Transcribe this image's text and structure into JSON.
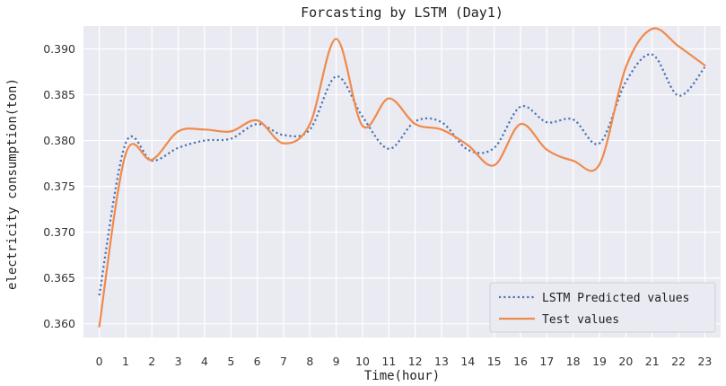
{
  "chart_data": {
    "type": "line",
    "title": "Forcasting by LSTM (Day1)",
    "xlabel": "Time(hour)",
    "ylabel": "electricity consumption(ton)",
    "x": [
      0,
      1,
      2,
      3,
      4,
      5,
      6,
      7,
      8,
      9,
      10,
      11,
      12,
      13,
      14,
      15,
      16,
      17,
      18,
      19,
      20,
      21,
      22,
      23
    ],
    "x_ticks": [
      "0",
      "1",
      "2",
      "3",
      "4",
      "5",
      "6",
      "7",
      "8",
      "9",
      "10",
      "11",
      "12",
      "13",
      "14",
      "15",
      "16",
      "17",
      "18",
      "19",
      "20",
      "21",
      "22",
      "23"
    ],
    "xlim": [
      -0.6,
      23.6
    ],
    "ylim": [
      0.3585,
      0.3925
    ],
    "y_ticks": [
      "0.360",
      "0.365",
      "0.370",
      "0.375",
      "0.380",
      "0.385",
      "0.390"
    ],
    "y_tick_values": [
      0.36,
      0.365,
      0.37,
      0.375,
      0.38,
      0.385,
      0.39
    ],
    "grid": true,
    "legend_position": "lower-right",
    "series": [
      {
        "name": "LSTM Predicted values",
        "style": "dotted",
        "color": "#4c72b0",
        "values": [
          0.3631,
          0.3797,
          0.3778,
          0.3792,
          0.38,
          0.3802,
          0.3818,
          0.3806,
          0.3812,
          0.387,
          0.3826,
          0.3791,
          0.3821,
          0.382,
          0.379,
          0.3792,
          0.3837,
          0.382,
          0.3823,
          0.3797,
          0.3864,
          0.3894,
          0.3849,
          0.388
        ]
      },
      {
        "name": "Test values",
        "style": "solid",
        "color": "#f08a4b",
        "values": [
          0.3597,
          0.3785,
          0.3779,
          0.381,
          0.3812,
          0.381,
          0.3822,
          0.3797,
          0.3818,
          0.3911,
          0.3816,
          0.3846,
          0.3818,
          0.3812,
          0.3795,
          0.3773,
          0.3818,
          0.379,
          0.3778,
          0.3774,
          0.388,
          0.3922,
          0.3903,
          0.3882
        ]
      }
    ]
  }
}
